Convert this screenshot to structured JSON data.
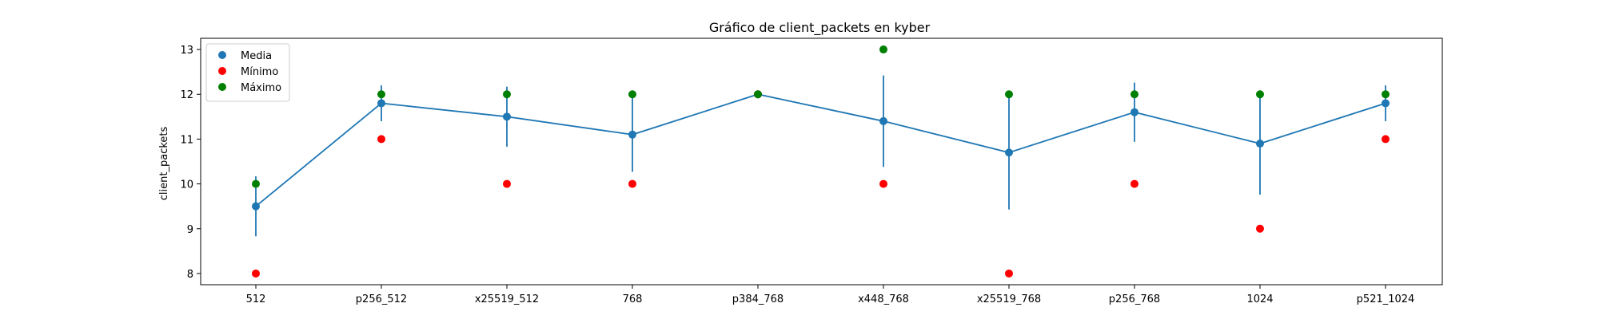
{
  "chart_data": {
    "type": "scatter",
    "title": "Gráfico de client_packets en kyber",
    "xlabel": "",
    "ylabel": "client_packets",
    "categories": [
      "512",
      "p256_512",
      "x25519_512",
      "768",
      "p384_768",
      "x448_768",
      "x25519_768",
      "p256_768",
      "1024",
      "p521_1024"
    ],
    "ylim": [
      7.75,
      13.25
    ],
    "yticks": [
      8,
      9,
      10,
      11,
      12,
      13
    ],
    "grid": false,
    "legend_position": "top-left",
    "series": [
      {
        "name": "Media",
        "kind": "line-errorbar",
        "color": "#1f77b4",
        "values": [
          9.5,
          11.8,
          11.5,
          11.1,
          12.0,
          11.4,
          10.7,
          11.6,
          10.9,
          11.8
        ],
        "error": [
          0.67,
          0.4,
          0.67,
          0.83,
          0.0,
          1.02,
          1.27,
          0.66,
          1.14,
          0.4
        ]
      },
      {
        "name": "Mínimo",
        "kind": "scatter",
        "color": "#ff0000",
        "values": [
          8,
          11,
          10,
          10,
          12,
          10,
          8,
          10,
          9,
          11
        ]
      },
      {
        "name": "Máximo",
        "kind": "scatter",
        "color": "#008000",
        "values": [
          10,
          12,
          12,
          12,
          12,
          13,
          12,
          12,
          12,
          12
        ]
      }
    ]
  }
}
